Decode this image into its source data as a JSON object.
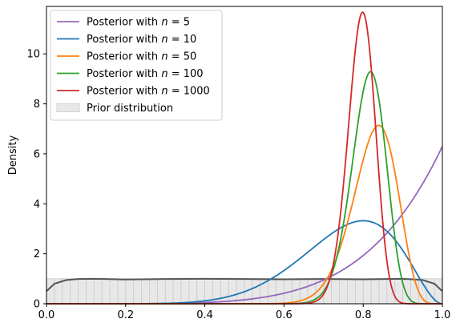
{
  "chart_data": {
    "type": "line",
    "title": "",
    "xlabel": "",
    "ylabel": "Density",
    "xlim": [
      0.0,
      1.0
    ],
    "ylim": [
      0,
      11.9
    ],
    "xticks": [
      "0.0",
      "0.2",
      "0.4",
      "0.6",
      "0.8",
      "1.0"
    ],
    "yticks": [
      "0",
      "2",
      "4",
      "6",
      "8",
      "10"
    ],
    "legend_position": "top-left",
    "series": [
      {
        "name": "Posterior with n = 5",
        "legend_prefix": "Posterior with ",
        "legend_var": "n",
        "legend_value": " = 5",
        "color": "#9467bd",
        "a": 6.3,
        "b": 1.0
      },
      {
        "name": "Posterior with n = 10",
        "legend_prefix": "Posterior with ",
        "legend_var": "n",
        "legend_value": " = 10",
        "color": "#1f77b4",
        "a": 9,
        "b": 3
      },
      {
        "name": "Posterior with n = 50",
        "legend_prefix": "Posterior with ",
        "legend_var": "n",
        "legend_value": " = 50",
        "color": "#ff7f0e",
        "a": 36.5,
        "b": 7.8
      },
      {
        "name": "Posterior with n = 100",
        "legend_prefix": "Posterior with ",
        "legend_var": "n",
        "legend_value": " = 100",
        "color": "#2ca02c",
        "a": 66,
        "b": 15.4
      },
      {
        "name": "Posterior with n = 1000",
        "legend_prefix": "Posterior with ",
        "legend_var": "n",
        "legend_value": " = 1000",
        "color": "#d62728",
        "a": 110,
        "b": 28.5
      }
    ],
    "prior": {
      "name": "Prior distribution",
      "fill_color": "#e8e8e8",
      "line_color": "#555555",
      "density": 1.0,
      "x": [
        0.0,
        0.02,
        0.05,
        0.08,
        0.12,
        0.2,
        0.3,
        0.4,
        0.5,
        0.6,
        0.7,
        0.8,
        0.9,
        0.95,
        0.98,
        1.0
      ],
      "y": [
        0.5,
        0.8,
        0.95,
        0.99,
        1.0,
        0.97,
        0.99,
        1.0,
        0.99,
        0.98,
        0.99,
        0.98,
        1.0,
        0.95,
        0.8,
        0.5
      ]
    }
  }
}
